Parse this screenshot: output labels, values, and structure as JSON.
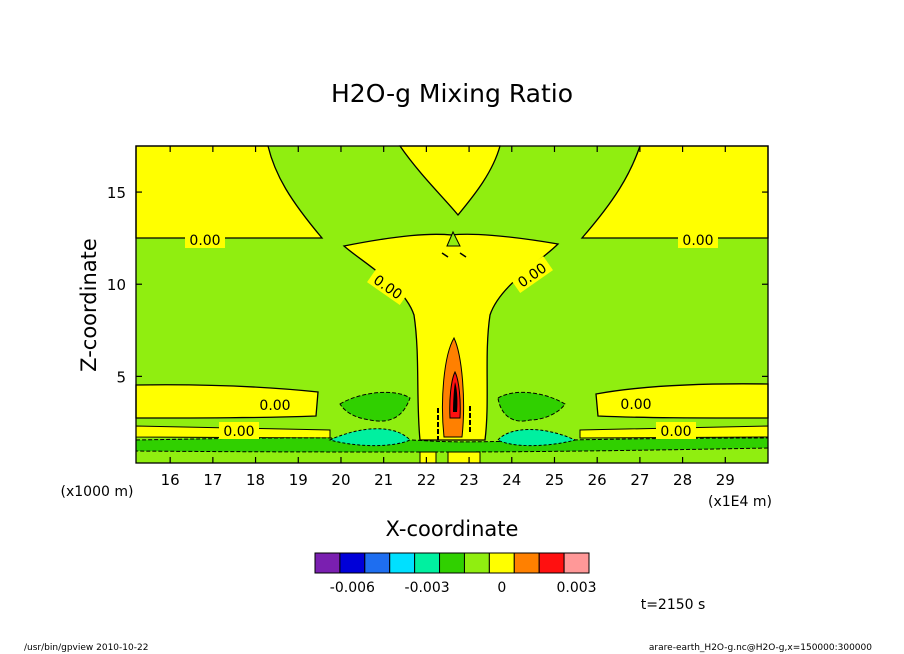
{
  "chart_data": {
    "type": "contour",
    "title": "H2O-g Mixing Ratio",
    "xlabel": "X-coordinate",
    "ylabel": "Z-coordinate",
    "x_unit": "(x1E4 m)",
    "y_unit": "(x1000 m)",
    "xlim": [
      15.2,
      30.0
    ],
    "ylim": [
      0.3,
      17.5
    ],
    "x_ticks": [
      16,
      17,
      18,
      19,
      20,
      21,
      22,
      23,
      24,
      25,
      26,
      27,
      28,
      29
    ],
    "y_ticks": [
      5,
      10,
      15
    ],
    "contour_labels": [
      "0.00",
      "0.00",
      "0.00",
      "0.00",
      "0.00",
      "0.00",
      "0.00",
      "0.00"
    ],
    "colorbar": {
      "colors": [
        "#7a1fb0",
        "#0000d8",
        "#1e6ef0",
        "#00e0ff",
        "#00f0a0",
        "#30d000",
        "#90ee10",
        "#ffff00",
        "#ff8000",
        "#ff1010",
        "#ff9898"
      ],
      "tick_labels": [
        "-0.006",
        "-0.003",
        "0",
        "0.003"
      ],
      "tick_values": [
        -0.006,
        -0.003,
        0,
        0.003
      ],
      "levels": [
        -0.0075,
        -0.0065,
        -0.0055,
        -0.0045,
        -0.0035,
        -0.0025,
        -0.0015,
        -0.0005,
        0.0005,
        0.0015,
        0.0025,
        0.0035
      ]
    },
    "time_label": "t=2150 s",
    "footer_left": "/usr/bin/gpview  2010-10-22",
    "footer_right": "arare-earth_H2O-g.nc@H2O-g,x=150000:300000"
  }
}
